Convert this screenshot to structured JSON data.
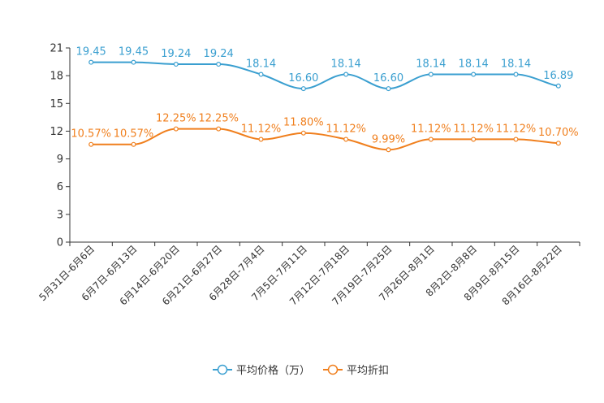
{
  "chart_data": {
    "type": "line",
    "title": "",
    "xlabel": "",
    "ylabel": "",
    "ylim": [
      0,
      21
    ],
    "yticks": [
      0,
      3,
      6,
      9,
      12,
      15,
      18,
      21
    ],
    "categories": [
      "5月31日-6月6日",
      "6月7日-6月13日",
      "6月14日-6月20日",
      "6月21日-6月27日",
      "6月28日-7月4日",
      "7月5日-7月11日",
      "7月12日-7月18日",
      "7月19日-7月25日",
      "7月26日-8月1日",
      "8月2日-8月8日",
      "8月9日-8月15日",
      "8月16日-8月22日"
    ],
    "series": [
      {
        "name": "平均价格（万）",
        "color": "#3a9fd0",
        "values": [
          19.45,
          19.45,
          19.24,
          19.24,
          18.14,
          16.6,
          18.14,
          16.6,
          18.14,
          18.14,
          18.14,
          16.89
        ],
        "labels": [
          "19.45",
          "19.45",
          "19.24",
          "19.24",
          "18.14",
          "16.60",
          "18.14",
          "16.60",
          "18.14",
          "18.14",
          "18.14",
          "16.89"
        ]
      },
      {
        "name": "平均折扣",
        "color": "#f07f1d",
        "values": [
          10.57,
          10.57,
          12.25,
          12.25,
          11.12,
          11.8,
          11.12,
          9.99,
          11.12,
          11.12,
          11.12,
          10.7
        ],
        "labels": [
          "10.57%",
          "10.57%",
          "12.25%",
          "12.25%",
          "11.12%",
          "11.80%",
          "11.12%",
          "9.99%",
          "11.12%",
          "11.12%",
          "11.12%",
          "10.70%"
        ]
      }
    ],
    "legend_position": "bottom-center"
  }
}
